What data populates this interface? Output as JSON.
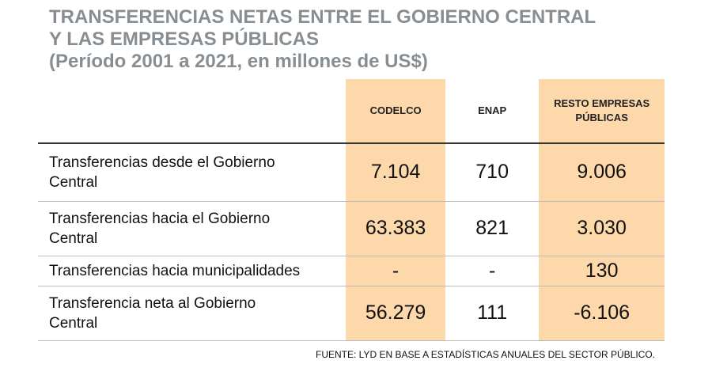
{
  "header": {
    "title_lines": [
      "TRANSFERENCIAS NETAS ENTRE EL GOBIERNO CENTRAL",
      "Y LAS EMPRESAS PÚBLICAS",
      "(Período 2001 a 2021, en millones de US$)"
    ]
  },
  "table": {
    "columns": [
      "CODELCO",
      "ENAP",
      "RESTO EMPRESAS PÚBLICAS"
    ],
    "rows": [
      {
        "label_lines": [
          "Transferencias desde el Gobierno",
          "Central"
        ],
        "cells": [
          "7.104",
          "710",
          "9.006"
        ]
      },
      {
        "label_lines": [
          "Transferencias hacia el Gobierno",
          "Central"
        ],
        "cells": [
          "63.383",
          "821",
          "3.030"
        ]
      },
      {
        "label_lines": [
          "Transferencias hacia municipalidades"
        ],
        "cells": [
          "-",
          "-",
          "130"
        ]
      },
      {
        "label_lines": [
          "Transferencia neta al Gobierno",
          "Central"
        ],
        "cells": [
          "56.279",
          "111",
          "-6.106"
        ]
      }
    ]
  },
  "footer": {
    "source": "FUENTE: LYD EN BASE A ESTADÍSTICAS ANUALES DEL SECTOR PÚBLICO."
  }
}
